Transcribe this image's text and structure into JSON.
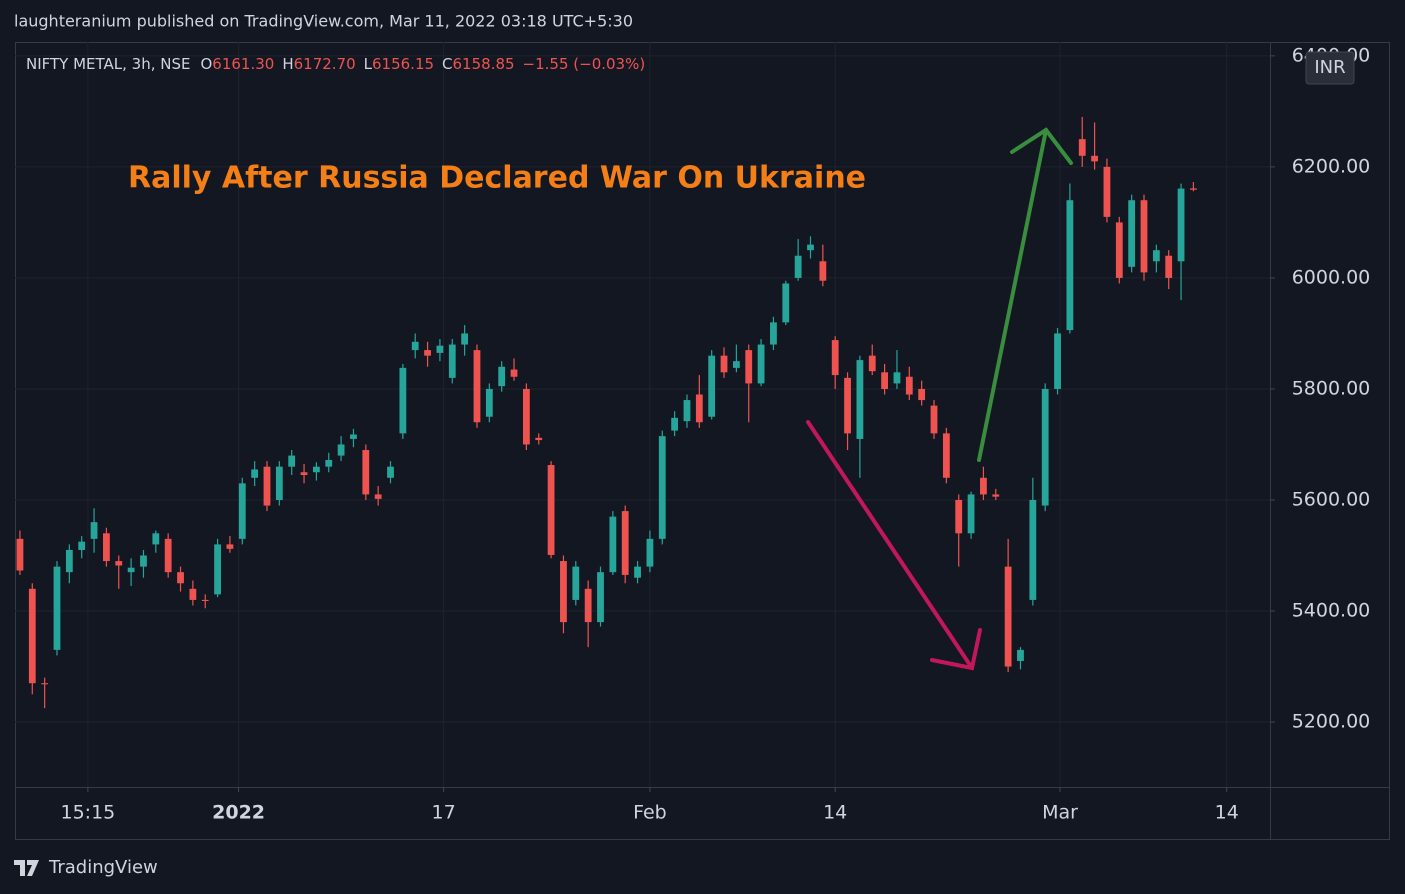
{
  "header": "laughteranium published on TradingView.com, Mar 11, 2022 03:18 UTC+5:30",
  "footer": "TradingView",
  "chart_data": {
    "type": "candlestick",
    "symbol": "NIFTY METAL, 3h, NSE",
    "legend": [
      {
        "label": "O",
        "value": "6161.30"
      },
      {
        "label": "H",
        "value": "6172.70"
      },
      {
        "label": "L",
        "value": "6156.15"
      },
      {
        "label": "C",
        "value": "6158.85"
      }
    ],
    "change": "−1.55 (−0.03%)",
    "currency": "INR",
    "annotation": "Rally After Russia Declared War On Ukraine",
    "up_color": "#26a69a",
    "down_color": "#ef5350",
    "grid": true,
    "open": [
      5530,
      5440,
      5270,
      5330,
      5470,
      5510,
      5530,
      5540,
      5490,
      5470,
      5480,
      5520,
      5530,
      5470,
      5440,
      5420,
      5430,
      5520,
      5530,
      5640,
      5660,
      5600,
      5660,
      5650,
      5650,
      5660,
      5680,
      5710,
      5690,
      5610,
      5640,
      5720,
      5870,
      5870,
      5865,
      5820,
      5880,
      5870,
      5750,
      5805,
      5835,
      5800,
      5712,
      5663,
      5490,
      5420,
      5440,
      5380,
      5470,
      5580,
      5460,
      5480,
      5530,
      5725,
      5742,
      5790,
      5750,
      5860,
      5838,
      5870,
      5810,
      5880,
      5920,
      6000,
      6050,
      6030,
      5888,
      5820,
      5710,
      5860,
      5830,
      5810,
      5822,
      5800,
      5770,
      5720,
      5600,
      5540,
      5640,
      5610,
      5480,
      5310,
      5420,
      5590,
      5800,
      5906,
      6250,
      6220,
      6200,
      6100,
      6020,
      6140,
      6030,
      6040,
      6030,
      6161.3
    ],
    "high": [
      5545,
      5450,
      5280,
      5490,
      5520,
      5535,
      5585,
      5550,
      5500,
      5495,
      5510,
      5545,
      5540,
      5480,
      5455,
      5430,
      5530,
      5535,
      5640,
      5670,
      5670,
      5670,
      5690,
      5665,
      5668,
      5685,
      5715,
      5728,
      5700,
      5625,
      5670,
      5845,
      5900,
      5885,
      5890,
      5890,
      5915,
      5880,
      5810,
      5850,
      5855,
      5810,
      5720,
      5670,
      5500,
      5490,
      5455,
      5480,
      5580,
      5590,
      5490,
      5545,
      5725,
      5760,
      5790,
      5825,
      5870,
      5875,
      5880,
      5880,
      5890,
      5930,
      5995,
      6070,
      6075,
      6060,
      5895,
      5830,
      5860,
      5880,
      5845,
      5870,
      5840,
      5815,
      5780,
      5730,
      5610,
      5615,
      5660,
      5620,
      5530,
      5335,
      5640,
      5810,
      5910,
      6170,
      6290,
      6280,
      6215,
      6110,
      6150,
      6150,
      6060,
      6050,
      6170,
      6172.7
    ],
    "low": [
      5465,
      5250,
      5225,
      5320,
      5450,
      5495,
      5505,
      5480,
      5440,
      5445,
      5460,
      5505,
      5460,
      5435,
      5410,
      5405,
      5425,
      5505,
      5520,
      5625,
      5580,
      5590,
      5645,
      5630,
      5635,
      5650,
      5670,
      5695,
      5600,
      5590,
      5630,
      5710,
      5855,
      5840,
      5850,
      5810,
      5860,
      5730,
      5740,
      5795,
      5815,
      5690,
      5700,
      5495,
      5360,
      5410,
      5335,
      5372,
      5465,
      5450,
      5450,
      5470,
      5520,
      5715,
      5730,
      5730,
      5745,
      5820,
      5830,
      5740,
      5805,
      5870,
      5915,
      5995,
      6035,
      5985,
      5800,
      5690,
      5640,
      5825,
      5790,
      5800,
      5780,
      5770,
      5710,
      5630,
      5480,
      5530,
      5600,
      5600,
      5290,
      5295,
      5410,
      5580,
      5790,
      5900,
      6200,
      6195,
      6100,
      5990,
      6010,
      5995,
      6010,
      5980,
      5960,
      6156.15
    ],
    "close": [
      5473,
      5270,
      5268,
      5480,
      5510,
      5525,
      5560,
      5490,
      5482,
      5478,
      5500,
      5540,
      5470,
      5450,
      5420,
      5418,
      5520,
      5512,
      5630,
      5655,
      5590,
      5660,
      5680,
      5645,
      5660,
      5672,
      5700,
      5718,
      5610,
      5602,
      5660,
      5838,
      5885,
      5860,
      5878,
      5880,
      5900,
      5740,
      5800,
      5840,
      5822,
      5700,
      5708,
      5501,
      5380,
      5480,
      5380,
      5470,
      5570,
      5465,
      5480,
      5530,
      5715,
      5748,
      5780,
      5740,
      5860,
      5830,
      5850,
      5810,
      5880,
      5920,
      5990,
      6040,
      6060,
      5995,
      5825,
      5720,
      5852,
      5832,
      5800,
      5830,
      5790,
      5780,
      5720,
      5640,
      5540,
      5610,
      5610,
      5606,
      5300,
      5330,
      5600,
      5800,
      5900,
      6140,
      6220,
      6210,
      6110,
      6000,
      6140,
      6010,
      6050,
      6000,
      6161,
      6158.85
    ],
    "xlim": [
      -0.4,
      101.2
    ],
    "xticks": [
      {
        "value": 5.5,
        "label": "15:15"
      },
      {
        "value": 17.7,
        "label": "2022"
      },
      {
        "value": 34.3,
        "label": "17"
      },
      {
        "value": 51.0,
        "label": "Feb"
      },
      {
        "value": 66.0,
        "label": "14"
      },
      {
        "value": 84.2,
        "label": "Mar"
      },
      {
        "value": 97.7,
        "label": "14"
      }
    ],
    "ylim": [
      5083,
      6425
    ],
    "yticks": [
      {
        "value": 5200,
        "label": "5200.00"
      },
      {
        "value": 5400,
        "label": "5400.00"
      },
      {
        "value": 5600,
        "label": "5600.00"
      },
      {
        "value": 5800,
        "label": "5800.00"
      },
      {
        "value": 6000,
        "label": "6000.00"
      },
      {
        "value": 6200,
        "label": "6200.00"
      },
      {
        "value": 6400,
        "label": "6400.00"
      }
    ]
  }
}
